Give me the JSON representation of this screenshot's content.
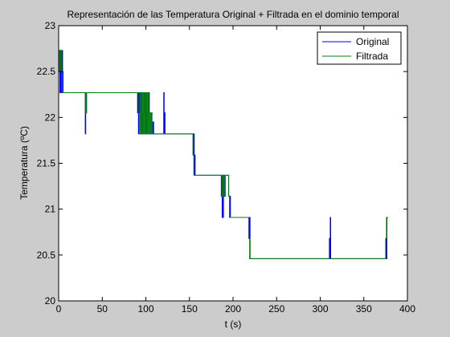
{
  "chart_data": {
    "type": "line",
    "title": "Representación de las Temperatura Original + Filtrada en el dominio temporal",
    "xlabel": "t (s)",
    "ylabel": "Temperatura (ºC)",
    "xlim": [
      0,
      400
    ],
    "ylim": [
      20,
      23
    ],
    "xticks": [
      0,
      50,
      100,
      150,
      200,
      250,
      300,
      350,
      400
    ],
    "yticks": [
      20,
      20.5,
      21,
      21.5,
      22,
      22.5,
      23
    ],
    "xtick_labels": [
      "0",
      "50",
      "100",
      "150",
      "200",
      "250",
      "300",
      "350",
      "400"
    ],
    "ytick_labels": [
      "20",
      "20.5",
      "21",
      "21.5",
      "22",
      "22.5",
      "23"
    ],
    "grid": false,
    "legend_position": "top-right",
    "background": "#ffffff",
    "figure_background": "#cccccc",
    "series": [
      {
        "name": "Original",
        "color": "#0000ff",
        "x": [
          1,
          1.5,
          2,
          2.5,
          3,
          3.5,
          4,
          4.5,
          5,
          5.5,
          6,
          6.5,
          7,
          30,
          30.5,
          31,
          31.5,
          32,
          90,
          90.5,
          91,
          91.5,
          92,
          93,
          94,
          95,
          96,
          97,
          98,
          99,
          100,
          101,
          102,
          103,
          104,
          105,
          106,
          107,
          108,
          109,
          110,
          120,
          120.5,
          121,
          121.5,
          122,
          154,
          154.5,
          155,
          155.5,
          156,
          156.5,
          157,
          186,
          186.5,
          187,
          187.5,
          188,
          188.5,
          189,
          190,
          191,
          192,
          193,
          194,
          195,
          196,
          196.5,
          197,
          197.5,
          198,
          218,
          218.5,
          219,
          219.5,
          220,
          310,
          310.5,
          311,
          311.5,
          312,
          375,
          375.5,
          376,
          376.5,
          377,
          377.5,
          378
        ],
        "y": [
          22.27,
          22.73,
          22.27,
          22.73,
          22.5,
          22.27,
          22.73,
          22.5,
          22.27,
          22.27,
          22.27,
          22.27,
          22.27,
          22.27,
          21.82,
          22.27,
          22.05,
          22.27,
          22.27,
          22.05,
          22.27,
          21.82,
          22.27,
          22.05,
          21.82,
          22.27,
          21.82,
          22.05,
          22.27,
          21.82,
          22.27,
          21.82,
          22.05,
          22.27,
          21.82,
          21.82,
          22.05,
          21.82,
          21.95,
          21.82,
          21.82,
          21.82,
          22.27,
          21.82,
          22.05,
          21.82,
          21.82,
          21.59,
          21.82,
          21.37,
          21.59,
          21.37,
          21.37,
          21.37,
          21.14,
          21.37,
          20.91,
          21.25,
          20.91,
          21.37,
          21.14,
          21.37,
          21.37,
          21.37,
          21.37,
          21.14,
          20.91,
          21.14,
          20.91,
          20.91,
          20.91,
          20.91,
          20.68,
          20.91,
          20.46,
          20.46,
          20.46,
          20.68,
          20.46,
          20.91,
          20.46,
          20.46,
          20.68,
          20.46,
          20.91,
          20.91,
          20.91,
          20.91
        ],
        "line_style": "step"
      },
      {
        "name": "Filtrada",
        "color": "#008000",
        "x": [
          0,
          1,
          2,
          3,
          4,
          5,
          6,
          7,
          31,
          32,
          90,
          91,
          92,
          93,
          94,
          95,
          96,
          97,
          98,
          99,
          100,
          101,
          102,
          103,
          104,
          105,
          106,
          107,
          108,
          109,
          110,
          154,
          155,
          156,
          157,
          187,
          188,
          189,
          190,
          191,
          192,
          193,
          194,
          195,
          196,
          197,
          198,
          218,
          219,
          220,
          375,
          376,
          377,
          378
        ],
        "y": [
          22.73,
          22.5,
          22.73,
          22.5,
          22.27,
          22.27,
          22.27,
          22.27,
          22.05,
          22.27,
          22.27,
          22.27,
          22.05,
          21.82,
          22.27,
          21.82,
          22.27,
          21.82,
          22.27,
          21.82,
          22.27,
          21.82,
          22.27,
          21.82,
          22.05,
          21.82,
          22.05,
          21.82,
          21.82,
          21.82,
          21.82,
          21.59,
          21.37,
          21.37,
          21.37,
          21.14,
          21.37,
          21.14,
          21.37,
          21.37,
          21.37,
          21.37,
          21.37,
          21.14,
          20.91,
          20.91,
          20.91,
          20.68,
          20.46,
          20.46,
          20.68,
          20.91,
          20.91,
          20.91
        ],
        "line_style": "step"
      }
    ]
  }
}
